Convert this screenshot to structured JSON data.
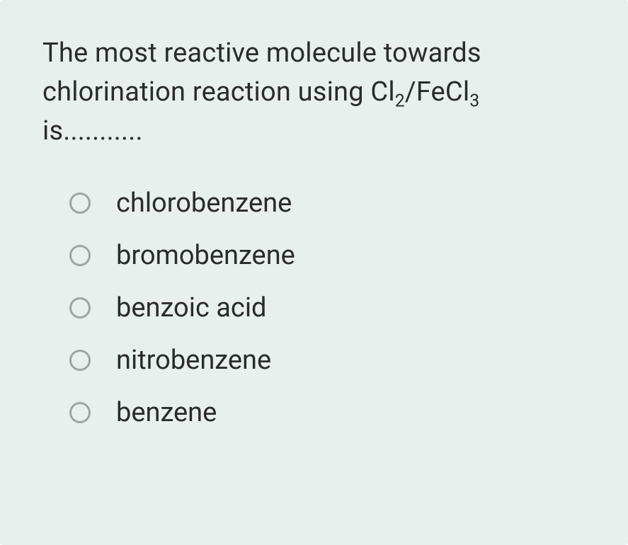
{
  "card": {
    "background_color": "#e8f0ee",
    "text_color": "#2b2b2b",
    "radio_border_color": "#9aa7a4",
    "question_fontsize": 38,
    "option_fontsize": 38
  },
  "question": {
    "part1": "The most reactive molecule towards chlorination reaction using Cl",
    "sub1": "2",
    "part2": "/FeCl",
    "sub2": "3",
    "part3": " is..........."
  },
  "options": [
    {
      "label": "chlorobenzene",
      "selected": false
    },
    {
      "label": "bromobenzene",
      "selected": false
    },
    {
      "label": "benzoic acid",
      "selected": false
    },
    {
      "label": "nitrobenzene",
      "selected": false
    },
    {
      "label": "benzene",
      "selected": false
    }
  ]
}
